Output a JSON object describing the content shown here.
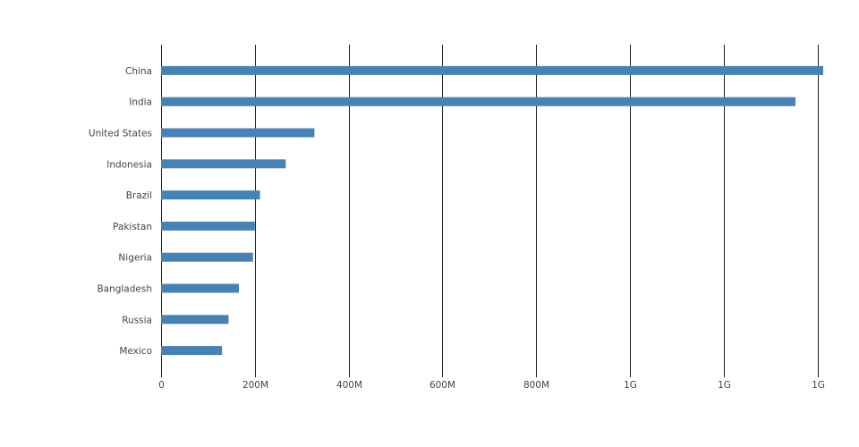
{
  "chart_data": {
    "type": "bar",
    "orientation": "horizontal",
    "categories": [
      "China",
      "India",
      "United States",
      "Indonesia",
      "Brazil",
      "Pakistan",
      "Nigeria",
      "Bangladesh",
      "Russia",
      "Mexico"
    ],
    "values": [
      1412000000,
      1353000000,
      327000000,
      266000000,
      211000000,
      200000000,
      196000000,
      166000000,
      144000000,
      130000000
    ],
    "x_ticks": [
      {
        "value": 0,
        "label": "0"
      },
      {
        "value": 200000000,
        "label": "200M"
      },
      {
        "value": 400000000,
        "label": "400M"
      },
      {
        "value": 600000000,
        "label": "600M"
      },
      {
        "value": 800000000,
        "label": "800M"
      },
      {
        "value": 1000000000,
        "label": "1G"
      },
      {
        "value": 1200000000,
        "label": "1G"
      },
      {
        "value": 1400000000,
        "label": "1G"
      }
    ],
    "xlim": [
      0,
      1412000000
    ],
    "title": "",
    "xlabel": "",
    "ylabel": "",
    "grid": "vertical",
    "legend": "none",
    "bar_color": "#4682b4"
  }
}
